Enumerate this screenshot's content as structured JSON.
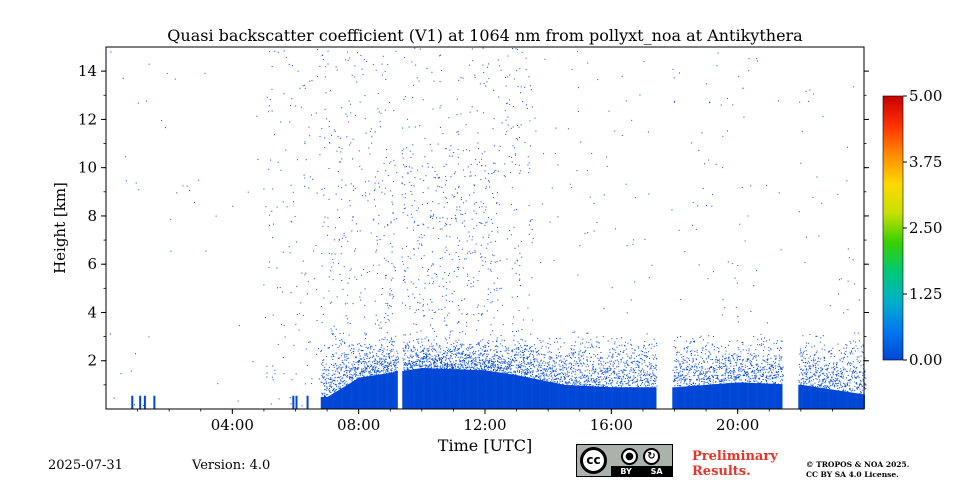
{
  "chart_data": {
    "type": "heatmap",
    "title": "Quasi backscatter coefficient (V1) at 1064 nm from pollyxt_noa at Antikythera",
    "xlabel": "Time [UTC]",
    "ylabel": "Height [km]",
    "x_unit": "hours UTC",
    "xlim": [
      0,
      24
    ],
    "ylim": [
      0,
      15
    ],
    "x_ticks": [
      {
        "value": 4,
        "label": "04:00"
      },
      {
        "value": 8,
        "label": "08:00"
      },
      {
        "value": 12,
        "label": "12:00"
      },
      {
        "value": 16,
        "label": "16:00"
      },
      {
        "value": 20,
        "label": "20:00"
      }
    ],
    "y_ticks": [
      {
        "value": 2,
        "label": "2"
      },
      {
        "value": 4,
        "label": "4"
      },
      {
        "value": 6,
        "label": "6"
      },
      {
        "value": 8,
        "label": "8"
      },
      {
        "value": 10,
        "label": "10"
      },
      {
        "value": 12,
        "label": "12"
      },
      {
        "value": 14,
        "label": "14"
      }
    ],
    "colorbar": {
      "min": 0.0,
      "max": 5.0,
      "ticks": [
        {
          "value": 0.0,
          "label": "0.00"
        },
        {
          "value": 1.25,
          "label": "1.25"
        },
        {
          "value": 2.5,
          "label": "2.50"
        },
        {
          "value": 3.75,
          "label": "3.75"
        },
        {
          "value": 5.0,
          "label": "5.00"
        }
      ],
      "colors": [
        "#0047d6",
        "#0078f0",
        "#00b0c8",
        "#00c878",
        "#36d000",
        "#c8e000",
        "#ffd800",
        "#ff8c00",
        "#ff3000",
        "#c80000"
      ]
    },
    "observation_color": "#0047d6",
    "aerosol_layer": {
      "start_hour": 6.8,
      "end_hour": 24,
      "base_height_km": 0,
      "top_height_km": [
        {
          "hour": 7.0,
          "km": 0.5
        },
        {
          "hour": 8.0,
          "km": 1.3
        },
        {
          "hour": 10.0,
          "km": 1.7
        },
        {
          "hour": 12.0,
          "km": 1.6
        },
        {
          "hour": 13.0,
          "km": 1.4
        },
        {
          "hour": 14.5,
          "km": 1.0
        },
        {
          "hour": 16.0,
          "km": 0.9
        },
        {
          "hour": 18.0,
          "km": 0.9
        },
        {
          "hour": 20.0,
          "km": 1.1
        },
        {
          "hour": 22.0,
          "km": 1.0
        },
        {
          "hour": 24.0,
          "km": 0.6
        }
      ],
      "sparse_signal_top_km": 2.7
    },
    "elevated_layer": {
      "start_hour": 8.8,
      "end_hour": 12.5,
      "top_km": 11.0,
      "description_free": true
    },
    "data_gaps_hours": [
      [
        9.2,
        9.35
      ],
      [
        17.4,
        17.9
      ],
      [
        21.4,
        21.9
      ]
    ],
    "early_signal_ticks_hours": [
      0.8,
      1.05,
      1.2,
      1.5,
      5.9,
      6.0,
      6.35,
      6.9,
      7.1
    ]
  },
  "footer": {
    "date": "2025-07-31",
    "version": "Version: 4.0",
    "license_badge": {
      "cc": "cc",
      "by": "BY",
      "sa": "SA"
    },
    "preliminary_line1": "Preliminary",
    "preliminary_line2": "Results.",
    "credit_line1": "© TROPOS & NOA 2025.",
    "credit_line2": "CC BY SA 4.0 License."
  }
}
